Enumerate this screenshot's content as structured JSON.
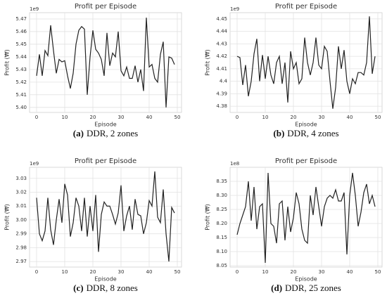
{
  "chart_data": [
    {
      "type": "line",
      "title": "Profit per Episode",
      "xlabel": "Episode",
      "ylabel": "Profit (₩)",
      "y_offset_label": "1e9",
      "caption_label": "(a)",
      "caption": "DDR, 2 zones",
      "color": "#222222",
      "grid": true,
      "x": [
        0,
        1,
        2,
        3,
        4,
        5,
        6,
        7,
        8,
        9,
        10,
        11,
        12,
        13,
        14,
        15,
        16,
        17,
        18,
        19,
        20,
        21,
        22,
        23,
        24,
        25,
        26,
        27,
        28,
        29,
        30,
        31,
        32,
        33,
        34,
        35,
        36,
        37,
        38,
        39,
        40,
        41,
        42,
        43,
        44,
        45,
        46,
        47,
        48,
        49
      ],
      "values": [
        5.425,
        5.442,
        5.425,
        5.445,
        5.441,
        5.465,
        5.445,
        5.427,
        5.438,
        5.436,
        5.437,
        5.425,
        5.415,
        5.427,
        5.45,
        5.461,
        5.464,
        5.462,
        5.41,
        5.44,
        5.461,
        5.446,
        5.443,
        5.438,
        5.425,
        5.459,
        5.433,
        5.443,
        5.44,
        5.46,
        5.429,
        5.425,
        5.432,
        5.423,
        5.423,
        5.433,
        5.42,
        5.43,
        5.413,
        5.471,
        5.432,
        5.434,
        5.423,
        5.42,
        5.442,
        5.452,
        5.4,
        5.44,
        5.439,
        5.434
      ],
      "xlim": [
        -2.5,
        51.5
      ],
      "xticks": [
        0,
        10,
        20,
        30,
        40,
        50
      ],
      "ylim": [
        5.396,
        5.475
      ],
      "yticks": [
        {
          "value": 5.4,
          "label": "5.40"
        },
        {
          "value": 5.41,
          "label": "5.41"
        },
        {
          "value": 5.42,
          "label": "5.42"
        },
        {
          "value": 5.43,
          "label": "5.43"
        },
        {
          "value": 5.44,
          "label": "5.44"
        },
        {
          "value": 5.45,
          "label": "5.45"
        },
        {
          "value": 5.46,
          "label": "5.46"
        },
        {
          "value": 5.47,
          "label": "5.47"
        }
      ]
    },
    {
      "type": "line",
      "title": "Profit per Episode",
      "xlabel": "Episode",
      "ylabel": "Profit (₩)",
      "y_offset_label": "1e9",
      "caption_label": "(b)",
      "caption": "DDR, 4 zones",
      "color": "#222222",
      "grid": true,
      "x": [
        0,
        1,
        2,
        3,
        4,
        5,
        6,
        7,
        8,
        9,
        10,
        11,
        12,
        13,
        14,
        15,
        16,
        17,
        18,
        19,
        20,
        21,
        22,
        23,
        24,
        25,
        26,
        27,
        28,
        29,
        30,
        31,
        32,
        33,
        34,
        35,
        36,
        37,
        38,
        39,
        40,
        41,
        42,
        43,
        44,
        45,
        46,
        47,
        48,
        49
      ],
      "values": [
        4.42,
        4.419,
        4.397,
        4.413,
        4.388,
        4.4,
        4.422,
        4.434,
        4.4,
        4.421,
        4.402,
        4.42,
        4.405,
        4.398,
        4.415,
        4.42,
        4.398,
        4.415,
        4.383,
        4.424,
        4.41,
        4.415,
        4.398,
        4.402,
        4.435,
        4.415,
        4.405,
        4.415,
        4.435,
        4.413,
        4.41,
        4.428,
        4.424,
        4.4,
        4.378,
        4.395,
        4.428,
        4.41,
        4.425,
        4.4,
        4.39,
        4.402,
        4.398,
        4.407,
        4.407,
        4.405,
        4.415,
        4.452,
        4.406,
        4.42
      ],
      "xlim": [
        -2.5,
        51.5
      ],
      "xticks": [
        0,
        10,
        20,
        30,
        40,
        50
      ],
      "ylim": [
        4.375,
        4.455
      ],
      "yticks": [
        4.38,
        4.39,
        4.4,
        4.41,
        4.42,
        4.43,
        4.44,
        4.45
      ]
    },
    {
      "type": "line",
      "title": "Profit per Episode",
      "xlabel": "Episode",
      "ylabel": "Profit (₩)",
      "y_offset_label": "1e9",
      "caption_label": "(c)",
      "caption": "DDR, 8 zones",
      "color": "#222222",
      "grid": true,
      "x": [
        0,
        1,
        2,
        3,
        4,
        5,
        6,
        7,
        8,
        9,
        10,
        11,
        12,
        13,
        14,
        15,
        16,
        17,
        18,
        19,
        20,
        21,
        22,
        23,
        24,
        25,
        26,
        27,
        28,
        29,
        30,
        31,
        32,
        33,
        34,
        35,
        36,
        37,
        38,
        39,
        40,
        41,
        42,
        43,
        44,
        45,
        46,
        47,
        48,
        49
      ],
      "values": [
        3.016,
        2.99,
        2.985,
        2.992,
        3.016,
        2.993,
        2.982,
        3.0,
        3.015,
        2.998,
        3.026,
        3.018,
        2.988,
        2.998,
        3.016,
        3.01,
        2.992,
        3.016,
        2.988,
        3.01,
        2.992,
        3.018,
        2.977,
        3.004,
        3.013,
        3.01,
        3.01,
        3.004,
        2.997,
        3.005,
        3.025,
        2.992,
        3.003,
        3.01,
        2.993,
        3.015,
        3.004,
        3.003,
        2.99,
        2.998,
        3.014,
        3.01,
        3.035,
        3.002,
        2.998,
        3.022,
        2.99,
        2.97,
        3.009,
        3.005
      ],
      "xlim": [
        -2.5,
        51.5
      ],
      "xticks": [
        0,
        10,
        20,
        30,
        40,
        50
      ],
      "ylim": [
        2.966,
        3.038
      ],
      "yticks": [
        2.97,
        2.98,
        2.99,
        {
          "value": 3.0,
          "label": "3.00"
        },
        3.01,
        3.02,
        3.03
      ]
    },
    {
      "type": "line",
      "title": "Profit per Episode",
      "xlabel": "Episode",
      "ylabel": "Profit (₩)",
      "y_offset_label": "1e8",
      "caption_label": "(d)",
      "caption": "DDR, 25 zones",
      "color": "#222222",
      "grid": true,
      "x": [
        0,
        1,
        2,
        3,
        4,
        5,
        6,
        7,
        8,
        9,
        10,
        11,
        12,
        13,
        14,
        15,
        16,
        17,
        18,
        19,
        20,
        21,
        22,
        23,
        24,
        25,
        26,
        27,
        28,
        29,
        30,
        31,
        32,
        33,
        34,
        35,
        36,
        37,
        38,
        39,
        40,
        41,
        42,
        43,
        44,
        45,
        46,
        47,
        48,
        49
      ],
      "values": [
        8.16,
        8.2,
        8.23,
        8.26,
        8.35,
        8.21,
        8.33,
        8.18,
        8.26,
        8.27,
        8.06,
        8.38,
        8.2,
        8.19,
        8.13,
        8.27,
        8.28,
        8.14,
        8.26,
        8.17,
        8.22,
        8.31,
        8.27,
        8.18,
        8.14,
        8.13,
        8.3,
        8.23,
        8.33,
        8.26,
        8.19,
        8.26,
        8.29,
        8.3,
        8.29,
        8.32,
        8.28,
        8.28,
        8.31,
        8.09,
        8.3,
        8.38,
        8.3,
        8.19,
        8.24,
        8.31,
        8.34,
        8.27,
        8.3,
        8.26
      ],
      "xlim": [
        -2.5,
        51.5
      ],
      "xticks": [
        0,
        10,
        20,
        30,
        40,
        50
      ],
      "ylim": [
        8.045,
        8.4
      ],
      "yticks": [
        8.05,
        {
          "value": 8.1,
          "label": "8.10"
        },
        8.15,
        {
          "value": 8.2,
          "label": "8.20"
        },
        8.25,
        {
          "value": 8.3,
          "label": "8.30"
        },
        8.35
      ]
    }
  ]
}
